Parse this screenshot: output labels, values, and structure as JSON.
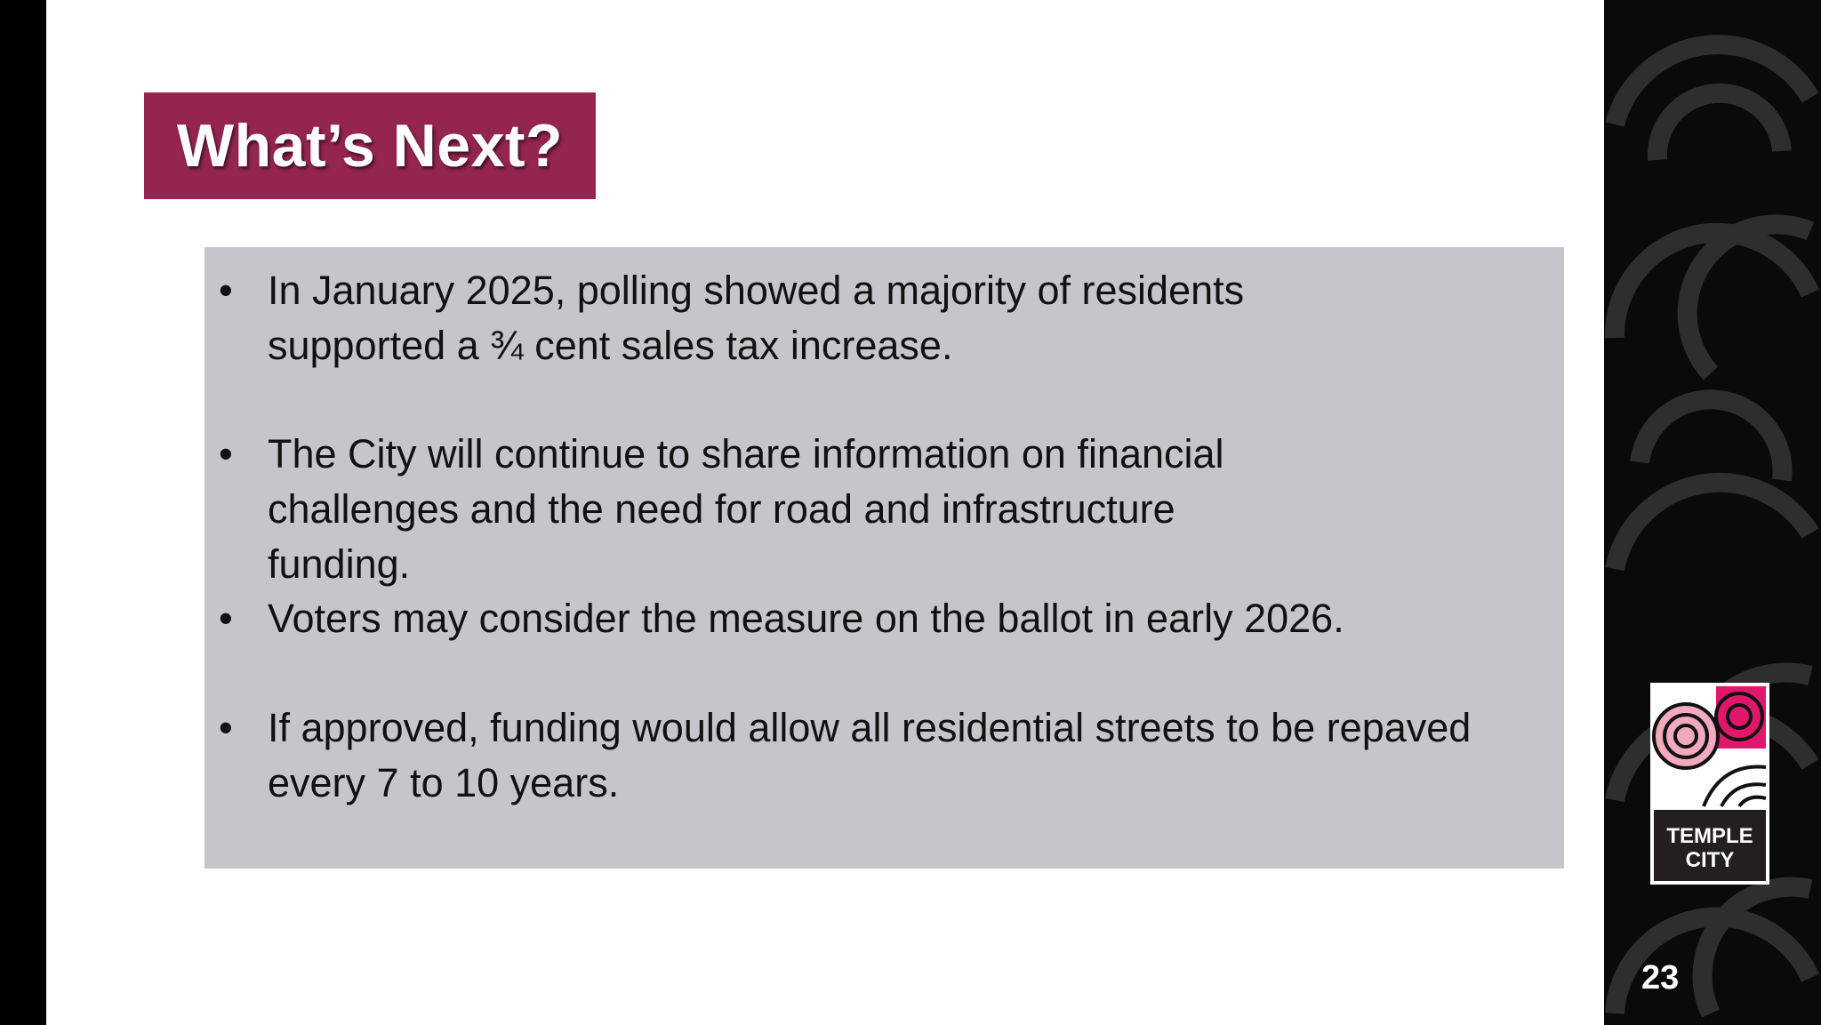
{
  "slide": {
    "title": "What’s Next?",
    "bullets": [
      {
        "marker": "•",
        "text": "In January 2025, polling showed a majority of residents supported a ¾ cent sales tax increase."
      },
      {
        "marker": "•",
        "text": "The City will continue to share information on financial challenges and the need for road and infrastructure funding."
      },
      {
        "marker": "•",
        "text": "Voters may consider the measure on the ballot in early 2026."
      },
      {
        "marker": "•",
        "text": "If approved, funding would allow all residential streets to be repaved every 7 to 10 years."
      }
    ],
    "page_number": "23"
  },
  "logo": {
    "text_line1": "TEMPLE",
    "text_line2": "CITY"
  },
  "colors": {
    "title_bg": "#93254f",
    "content_bg": "#c6c5cb",
    "panel_bg": "#0a0a0a",
    "logo_pink": "#f0a9bd",
    "logo_magenta": "#e0176a"
  }
}
